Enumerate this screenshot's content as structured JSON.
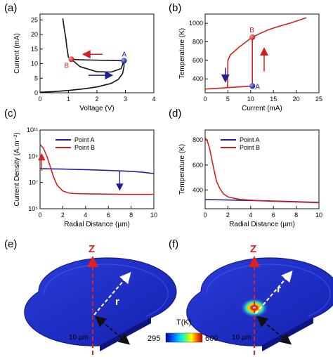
{
  "panels": {
    "a": {
      "label": "(a)"
    },
    "b": {
      "label": "(b)"
    },
    "c": {
      "label": "(c)"
    },
    "d": {
      "label": "(d)"
    },
    "e": {
      "label": "(e)"
    },
    "f": {
      "label": "(f)"
    }
  },
  "colors": {
    "point_a": "#1b1f9a",
    "point_b": "#d42020",
    "black": "#111111"
  },
  "chart_data": [
    {
      "id": "a",
      "type": "line",
      "xlabel": "Voltage (V)",
      "ylabel": "Current (mA)",
      "xlim": [
        0,
        4
      ],
      "ylim": [
        0,
        27
      ],
      "xticks": [
        "0",
        "1",
        "2",
        "3",
        "4"
      ],
      "yticks": [
        "0",
        "5",
        "10",
        "15",
        "20",
        "25"
      ],
      "series": [
        {
          "points": [
            [
              0,
              0.2
            ],
            [
              0.5,
              0.4
            ],
            [
              1.0,
              0.8
            ],
            [
              1.5,
              1.3
            ],
            [
              2.0,
              2.0
            ],
            [
              2.5,
              3.2
            ],
            [
              2.75,
              4.6
            ],
            [
              2.9,
              6.5
            ],
            [
              2.95,
              9.0
            ],
            [
              2.95,
              11.0
            ]
          ]
        },
        {
          "points": [
            [
              2.95,
              11.0
            ],
            [
              1.4,
              11.3
            ],
            [
              1.1,
              11.5
            ]
          ]
        },
        {
          "points": [
            [
              1.1,
              11.5
            ],
            [
              1.4,
              9.0
            ],
            [
              2.0,
              7.2
            ],
            [
              2.5,
              7.1
            ],
            [
              2.85,
              8.3
            ],
            [
              2.95,
              11.0
            ]
          ]
        },
        {
          "points": [
            [
              1.0,
              12.0
            ],
            [
              0.95,
              15.0
            ],
            [
              0.9,
              19.0
            ],
            [
              0.85,
              22.0
            ],
            [
              0.8,
              25.5
            ]
          ]
        }
      ],
      "points": [
        {
          "name": "A",
          "x": 2.95,
          "y": 11.0
        },
        {
          "name": "B",
          "x": 1.1,
          "y": 11.5
        }
      ]
    },
    {
      "id": "b",
      "type": "line",
      "xlabel": "Current (mA)",
      "ylabel": "Temperature (K)",
      "xlim": [
        0,
        27
      ],
      "ylim": [
        250,
        1100
      ],
      "xticks": [
        "0",
        "5",
        "10",
        "15",
        "20",
        "25"
      ],
      "yticks": [
        "400",
        "600",
        "800",
        "1000"
      ],
      "series": [
        {
          "points": [
            [
              0,
              290
            ],
            [
              3,
              298
            ],
            [
              5,
              305
            ],
            [
              8,
              313
            ],
            [
              10,
              320
            ],
            [
              11.2,
              323
            ]
          ]
        },
        {
          "points": [
            [
              5.3,
              305
            ],
            [
              5.4,
              600
            ],
            [
              6,
              660
            ],
            [
              7,
              700
            ],
            [
              8,
              740
            ],
            [
              9,
              775
            ],
            [
              10,
              810
            ],
            [
              11.2,
              850
            ],
            [
              13,
              890
            ],
            [
              15,
              930
            ],
            [
              17,
              960
            ],
            [
              20,
              1000
            ],
            [
              22,
              1030
            ],
            [
              24,
              1060
            ]
          ]
        },
        {
          "points": [
            [
              11.2,
              323
            ],
            [
              11.2,
              850
            ]
          ]
        }
      ],
      "points": [
        {
          "name": "A",
          "x": 11.2,
          "y": 323
        },
        {
          "name": "B",
          "x": 11.2,
          "y": 850
        }
      ]
    },
    {
      "id": "c",
      "type": "line",
      "xlabel": "Radial Distance (µm)",
      "ylabel": "Current Density (A.m⁻²)",
      "xlim": [
        0,
        10
      ],
      "ylim_log10": [
        5,
        11
      ],
      "yticks": [
        "10⁵",
        "10⁷",
        "10⁹",
        "10¹¹"
      ],
      "xticks": [
        "0",
        "2",
        "4",
        "6",
        "8",
        "10"
      ],
      "series": [
        {
          "name": "Point A",
          "color": "point_a",
          "points": [
            [
              0,
              8.05
            ],
            [
              2,
              8.02
            ],
            [
              4,
              7.98
            ],
            [
              6,
              7.92
            ],
            [
              8,
              7.85
            ],
            [
              9,
              7.78
            ],
            [
              10,
              7.68
            ]
          ]
        },
        {
          "name": "Point B",
          "color": "point_b",
          "points": [
            [
              0,
              9.9
            ],
            [
              0.3,
              9.6
            ],
            [
              0.6,
              9.0
            ],
            [
              0.9,
              8.2
            ],
            [
              1.2,
              7.4
            ],
            [
              1.5,
              6.8
            ],
            [
              2,
              6.35
            ],
            [
              2.5,
              6.2
            ],
            [
              3,
              6.15
            ],
            [
              5,
              6.12
            ],
            [
              7,
              6.1
            ],
            [
              10,
              6.1
            ]
          ]
        }
      ]
    },
    {
      "id": "d",
      "type": "line",
      "xlabel": "Radial Distance (µm)",
      "ylabel": "Temperature (K)",
      "xlim": [
        0,
        10
      ],
      "ylim": [
        250,
        880
      ],
      "xticks": [
        "0",
        "2",
        "4",
        "6",
        "8",
        "10"
      ],
      "yticks": [
        "400",
        "600",
        "800"
      ],
      "series": [
        {
          "name": "Point A",
          "color": "point_a",
          "points": [
            [
              0,
              323
            ],
            [
              2,
              320
            ],
            [
              4,
              316
            ],
            [
              6,
              312
            ],
            [
              8,
              306
            ],
            [
              10,
              300
            ]
          ]
        },
        {
          "name": "Point B",
          "color": "point_b",
          "points": [
            [
              0,
              820
            ],
            [
              0.2,
              790
            ],
            [
              0.4,
              730
            ],
            [
              0.6,
              640
            ],
            [
              0.8,
              550
            ],
            [
              1.0,
              470
            ],
            [
              1.3,
              410
            ],
            [
              1.6,
              370
            ],
            [
              2,
              345
            ],
            [
              3,
              325
            ],
            [
              5,
              313
            ],
            [
              7,
              306
            ],
            [
              10,
              298
            ]
          ]
        }
      ]
    }
  ],
  "sims": {
    "axis_z": "Z",
    "axis_r": "r",
    "scale_label": "10 µm",
    "colorbar_title": "T(K)",
    "colorbar_min": "295",
    "colorbar_max": "600"
  }
}
